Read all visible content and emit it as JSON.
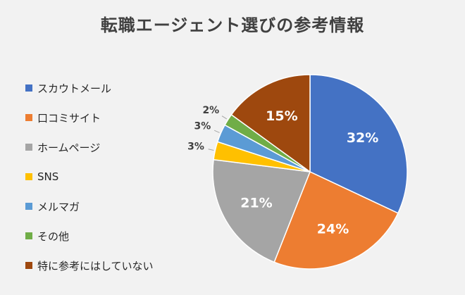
{
  "chart_data": {
    "type": "pie",
    "title": "転職エージェント選びの参考情報",
    "legend_position": "left",
    "categories": [
      "スカウトメール",
      "口コミサイト",
      "ホームページ",
      "SNS",
      "メルマガ",
      "その他",
      "特に参考にはしていない"
    ],
    "values": [
      32,
      24,
      21,
      3,
      3,
      2,
      15
    ],
    "labels": [
      "32%",
      "24%",
      "21%",
      "3%",
      "3%",
      "2%",
      "15%"
    ],
    "colors": [
      "#4472c4",
      "#ed7d31",
      "#a5a5a5",
      "#ffc000",
      "#5b9bd5",
      "#70ad47",
      "#9e480e"
    ]
  }
}
